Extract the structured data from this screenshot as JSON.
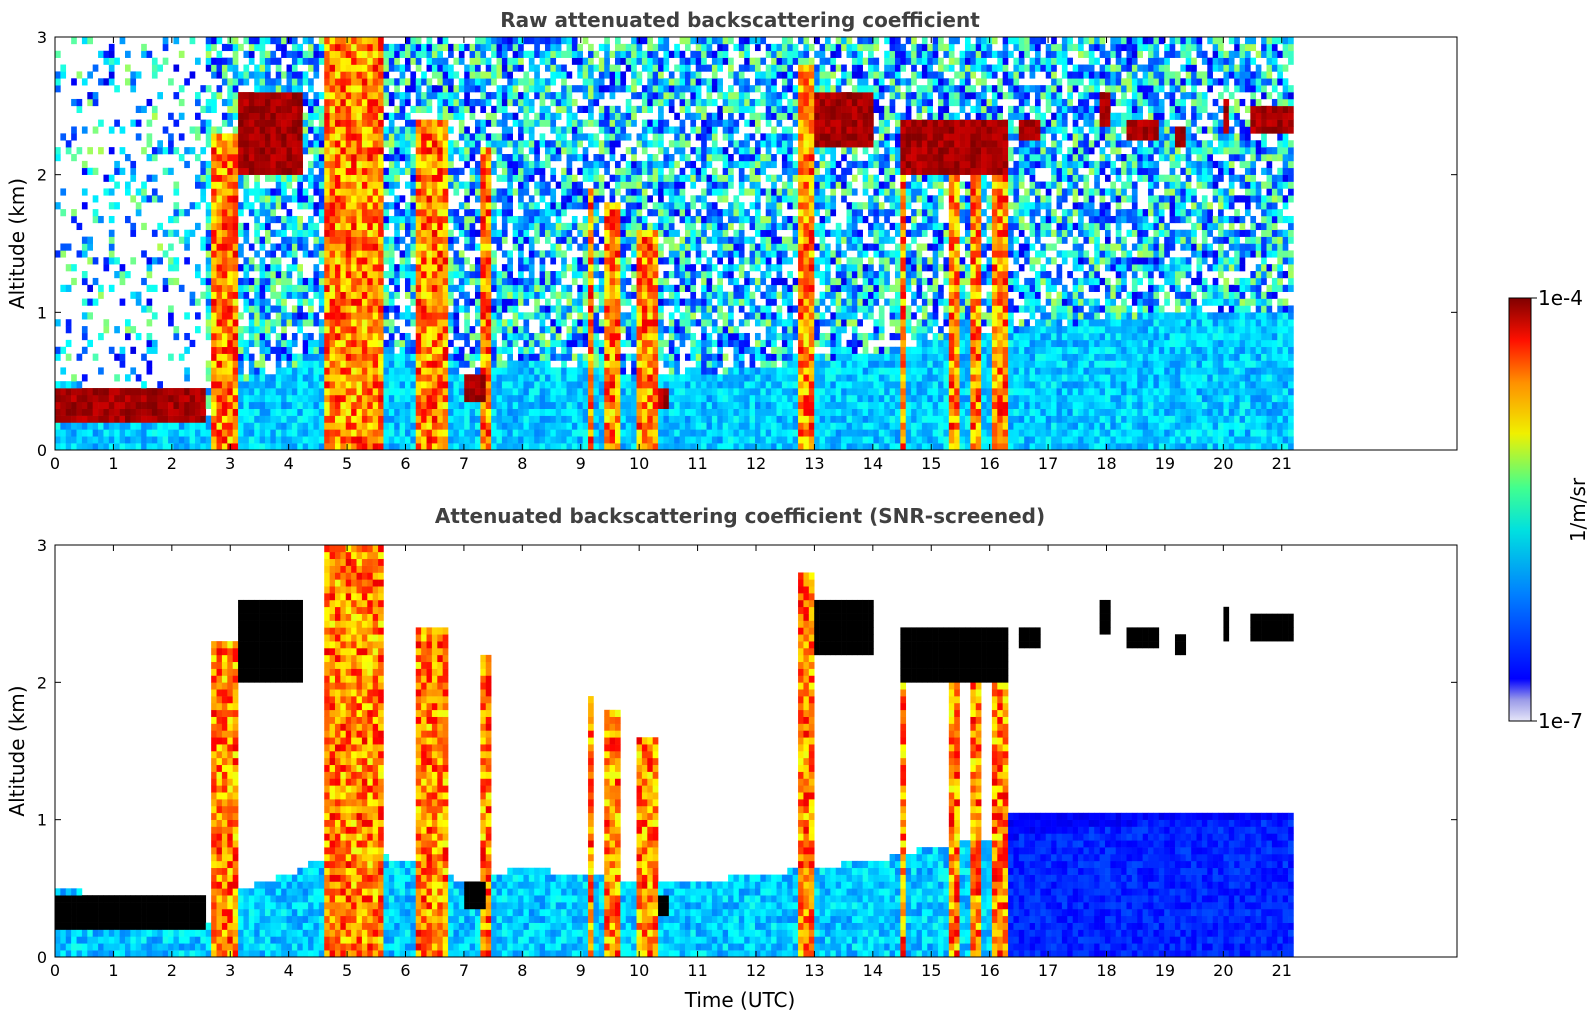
{
  "chart_data": [
    {
      "type": "heatmap",
      "title": "Raw attenuated backscattering coefficient",
      "xlabel": "",
      "ylabel": "Altitude (km)",
      "xlim": [
        0,
        24
      ],
      "ylim": [
        0,
        3
      ],
      "x_ticks": [
        "0",
        "1",
        "2",
        "3",
        "4",
        "5",
        "6",
        "7",
        "8",
        "9",
        "10",
        "11",
        "12",
        "13",
        "14",
        "15",
        "16",
        "17",
        "18",
        "19",
        "20",
        "21"
      ],
      "y_ticks": [
        "0",
        "1",
        "2",
        "3"
      ],
      "data_x_range": [
        0,
        21.2
      ],
      "grid": false
    },
    {
      "type": "heatmap",
      "title": "Attenuated backscattering coefficient (SNR-screened)",
      "xlabel": "Time (UTC)",
      "ylabel": "Altitude (km)",
      "xlim": [
        0,
        24
      ],
      "ylim": [
        0,
        3
      ],
      "x_ticks": [
        "0",
        "1",
        "2",
        "3",
        "4",
        "5",
        "6",
        "7",
        "8",
        "9",
        "10",
        "11",
        "12",
        "13",
        "14",
        "15",
        "16",
        "17",
        "18",
        "19",
        "20",
        "21"
      ],
      "y_ticks": [
        "0",
        "1",
        "2",
        "3"
      ],
      "data_x_range": [
        0,
        21.2
      ],
      "grid": false
    }
  ],
  "colorbar": {
    "label": "1/m/sr",
    "max_label": "1e-4",
    "min_label": "1e-7",
    "scale": "log",
    "colormap": "jet"
  },
  "profiles": {
    "boundary_layer_top_km": [
      [
        0,
        0.5
      ],
      [
        1,
        0.45
      ],
      [
        2,
        0.3
      ],
      [
        2.6,
        0.25
      ],
      [
        3.2,
        0.5
      ],
      [
        4,
        0.6
      ],
      [
        5,
        0.8
      ],
      [
        6,
        0.7
      ],
      [
        7,
        0.55
      ],
      [
        8,
        0.65
      ],
      [
        9,
        0.6
      ],
      [
        10,
        0.55
      ],
      [
        11,
        0.55
      ],
      [
        12,
        0.6
      ],
      [
        13,
        0.65
      ],
      [
        14,
        0.7
      ],
      [
        15,
        0.8
      ],
      [
        16,
        0.85
      ],
      [
        17,
        0.9
      ],
      [
        18,
        0.95
      ],
      [
        19,
        1.0
      ],
      [
        20,
        1.0
      ],
      [
        21.2,
        1.0
      ]
    ],
    "columns": [
      {
        "t": [
          2.65,
          3.1
        ],
        "top": 2.3,
        "cls": "rain"
      },
      {
        "t": [
          4.6,
          5.6
        ],
        "top": 3.0,
        "cls": "rain"
      },
      {
        "t": [
          6.2,
          6.7
        ],
        "top": 2.4,
        "cls": "rain"
      },
      {
        "t": [
          7.3,
          7.45
        ],
        "top": 2.2,
        "cls": "rain"
      },
      {
        "t": [
          9.1,
          9.25
        ],
        "top": 1.9,
        "cls": "rain"
      },
      {
        "t": [
          9.4,
          9.7
        ],
        "top": 1.8,
        "cls": "rain"
      },
      {
        "t": [
          10.0,
          10.35
        ],
        "top": 1.6,
        "cls": "rain"
      },
      {
        "t": [
          12.7,
          13.0
        ],
        "top": 2.8,
        "cls": "rain"
      },
      {
        "t": [
          14.5,
          14.6
        ],
        "top": 2.2,
        "cls": "rain"
      },
      {
        "t": [
          15.3,
          15.5
        ],
        "top": 2.2,
        "cls": "rain"
      },
      {
        "t": [
          15.7,
          15.85
        ],
        "top": 2.3,
        "cls": "rain"
      },
      {
        "t": [
          16.0,
          16.3
        ],
        "top": 2.3,
        "cls": "rain"
      }
    ],
    "cloud_layers": [
      {
        "t": [
          0,
          2.6
        ],
        "z": [
          0.18,
          0.45
        ],
        "cls": "cloud"
      },
      {
        "t": [
          3.1,
          4.2
        ],
        "z": [
          2.0,
          2.6
        ],
        "cls": "cloud"
      },
      {
        "t": [
          7.0,
          7.4
        ],
        "z": [
          0.35,
          0.55
        ],
        "cls": "cloud"
      },
      {
        "t": [
          10.3,
          10.5
        ],
        "z": [
          0.3,
          0.45
        ],
        "cls": "cloud"
      },
      {
        "t": [
          13.0,
          14.0
        ],
        "z": [
          2.2,
          2.6
        ],
        "cls": "cloud"
      },
      {
        "t": [
          14.5,
          16.3
        ],
        "z": [
          2.0,
          2.4
        ],
        "cls": "cloud"
      },
      {
        "t": [
          16.5,
          16.9
        ],
        "z": [
          2.25,
          2.4
        ],
        "cls": "cloud"
      },
      {
        "t": [
          17.9,
          18.1
        ],
        "z": [
          2.35,
          2.6
        ],
        "cls": "cloud"
      },
      {
        "t": [
          18.3,
          18.9
        ],
        "z": [
          2.25,
          2.4
        ],
        "cls": "cloud"
      },
      {
        "t": [
          19.2,
          19.35
        ],
        "z": [
          2.2,
          2.35
        ],
        "cls": "cloud"
      },
      {
        "t": [
          20.0,
          20.1
        ],
        "z": [
          2.3,
          2.55
        ],
        "cls": "cloud"
      },
      {
        "t": [
          20.5,
          21.2
        ],
        "z": [
          2.3,
          2.5
        ],
        "cls": "cloud"
      }
    ]
  }
}
